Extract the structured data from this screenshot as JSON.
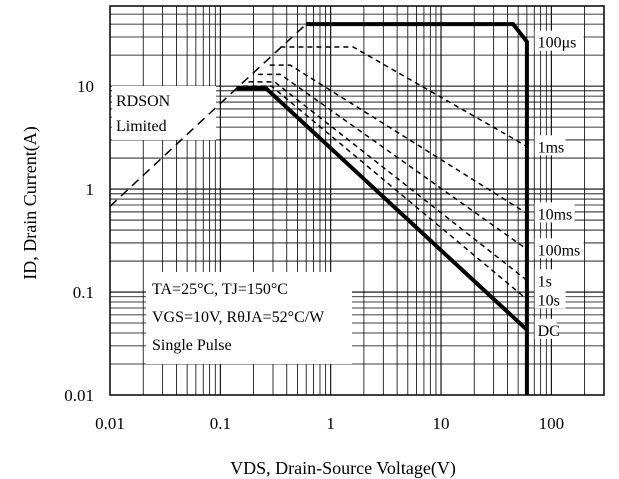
{
  "chart_data": {
    "type": "line",
    "title": "",
    "xlabel": "VDS, Drain-Source Voltage(V)",
    "ylabel": "ID, Drain Current(A)",
    "xscale": "log",
    "yscale": "log",
    "xlim": [
      0.01,
      300
    ],
    "ylim": [
      0.01,
      60
    ],
    "grid": true,
    "x_tick_labels": [
      "0.01",
      "0.1",
      "1",
      "10",
      "100"
    ],
    "y_tick_labels": [
      "0.01",
      "0.1",
      "1",
      "10"
    ],
    "rdson_label": [
      "RDSON",
      "Limited"
    ],
    "conditions": [
      "TA=25°C, TJ=150°C",
      "VGS=10V, RθJA=52°C/W",
      "Single Pulse"
    ],
    "rdson_line": {
      "style": "dashed",
      "x": [
        0.01,
        0.14,
        0.6
      ],
      "y": [
        0.68,
        9.5,
        40
      ]
    },
    "series": [
      {
        "name": "100μs",
        "style": "thick",
        "x": [
          0.6,
          45,
          60,
          60
        ],
        "y": [
          40,
          40,
          27,
          0.01
        ]
      },
      {
        "name": "1ms",
        "style": "dashed",
        "x": [
          0.35,
          1.6,
          60
        ],
        "y": [
          24,
          24,
          2.6
        ]
      },
      {
        "name": "10ms",
        "style": "dashed",
        "x": [
          0.28,
          0.43,
          60
        ],
        "y": [
          16,
          16,
          0.58
        ]
      },
      {
        "name": "100ms",
        "style": "dashed",
        "x": [
          0.22,
          0.35,
          60
        ],
        "y": [
          13,
          13,
          0.26
        ]
      },
      {
        "name": "1s",
        "style": "dashed",
        "x": [
          0.18,
          0.31,
          60
        ],
        "y": [
          11,
          11,
          0.13
        ]
      },
      {
        "name": "10s",
        "style": "dashed",
        "x": [
          0.16,
          0.29,
          60
        ],
        "y": [
          10,
          10,
          0.085
        ]
      },
      {
        "name": "DC",
        "style": "thick",
        "x": [
          0.14,
          0.26,
          60
        ],
        "y": [
          9.5,
          9.5,
          0.043
        ]
      }
    ],
    "curve_labels": [
      {
        "text": "100μs",
        "x": 75,
        "y": 27
      },
      {
        "text": "1ms",
        "x": 75,
        "y": 2.6
      },
      {
        "text": "10ms",
        "x": 75,
        "y": 0.58
      },
      {
        "text": "100ms",
        "x": 75,
        "y": 0.26
      },
      {
        "text": "1s",
        "x": 75,
        "y": 0.13
      },
      {
        "text": "10s",
        "x": 75,
        "y": 0.085
      },
      {
        "text": "DC",
        "x": 75,
        "y": 0.043
      }
    ]
  }
}
